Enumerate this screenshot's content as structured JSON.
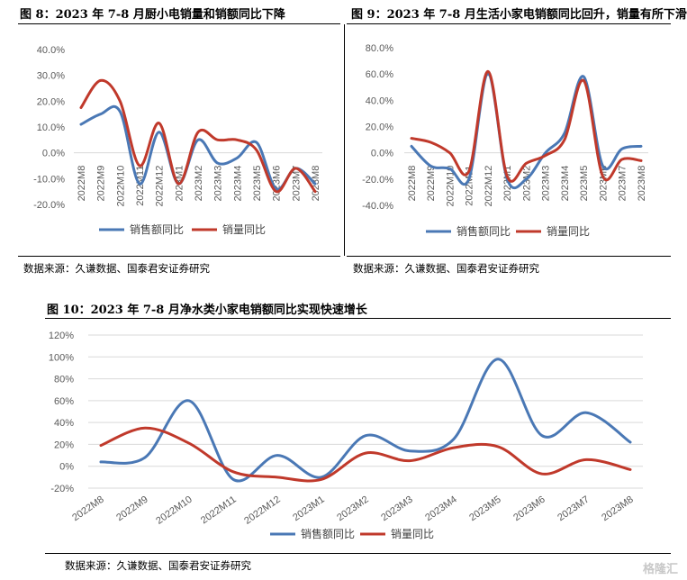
{
  "panels": [
    {
      "title": "图 8：2023 年 7-8 月厨小电销量和销额同比下降",
      "source": "数据来源：久谦数据、国泰君安证券研究"
    },
    {
      "title": "图 9：2023 年 7-8 月生活小家电销额同比回升，销量有所下滑",
      "source": "数据来源：久谦数据、国泰君安证券研究"
    },
    {
      "title": "图 10：2023 年 7-8 月净水类小家电销额同比实现快速增长",
      "source": "数据来源：久谦数据、国泰君安证券研究"
    }
  ],
  "watermark": "格隆汇",
  "colors": {
    "sales_amount": "#4a78b5",
    "sales_volume": "#c0392b",
    "grid": "#d9d9d9"
  },
  "chart_data": [
    {
      "type": "line",
      "title": "",
      "categories": [
        "2022M8",
        "2022M9",
        "2022M10",
        "2022M11",
        "2022M12",
        "2023M1",
        "2023M2",
        "2023M3",
        "2023M4",
        "2023M5",
        "2023M6",
        "2023M7",
        "2023M8"
      ],
      "series": [
        {
          "name": "销售额同比",
          "values": [
            11,
            15,
            16,
            -12,
            8,
            -12,
            5,
            -4,
            -2,
            4,
            -14,
            -6,
            -12
          ]
        },
        {
          "name": "销量同比",
          "values": [
            17.5,
            28,
            20,
            -5,
            11.5,
            -12,
            8,
            5,
            5,
            1,
            -15,
            -6,
            -15
          ]
        }
      ],
      "yticks": [
        "40.0%",
        "30.0%",
        "20.0%",
        "10.0%",
        "0.0%",
        "-10.0%",
        "-20.0%"
      ],
      "ylim": [
        -20,
        40
      ],
      "legend_position": "bottom"
    },
    {
      "type": "line",
      "title": "",
      "categories": [
        "2022M8",
        "2022M9",
        "2022M10",
        "2022M11",
        "2022M12",
        "2023M1",
        "2023M2",
        "2023M3",
        "2023M4",
        "2023M5",
        "2023M6",
        "2023M7",
        "2023M8"
      ],
      "series": [
        {
          "name": "销售额同比",
          "values": [
            5,
            -10,
            -12,
            -20,
            60,
            -20,
            -20,
            0,
            15,
            58,
            -10,
            3,
            5
          ]
        },
        {
          "name": "销量同比",
          "values": [
            11,
            8,
            0,
            -14,
            62,
            -18,
            -8,
            -2,
            10,
            55,
            -18,
            -5,
            -6
          ]
        }
      ],
      "yticks": [
        "80.0%",
        "60.0%",
        "40.0%",
        "20.0%",
        "0.0%",
        "-20.0%",
        "-40.0%"
      ],
      "ylim": [
        -40,
        80
      ],
      "legend_position": "bottom"
    },
    {
      "type": "line",
      "title": "",
      "categories": [
        "2022M8",
        "2022M9",
        "2022M10",
        "2022M11",
        "2022M12",
        "2023M1",
        "2023M2",
        "2023M3",
        "2023M4",
        "2023M5",
        "2023M6",
        "2023M7",
        "2023M8"
      ],
      "series": [
        {
          "name": "销售额同比",
          "values": [
            4,
            8,
            60,
            -12,
            10,
            -10,
            28,
            14,
            25,
            98,
            28,
            49,
            22
          ]
        },
        {
          "name": "销量同比",
          "values": [
            19,
            35,
            21,
            -5,
            -10,
            -12,
            12,
            5,
            17,
            18,
            -7,
            6,
            -3
          ]
        }
      ],
      "yticks": [
        "120%",
        "100%",
        "80%",
        "60%",
        "40%",
        "20%",
        "0%",
        "-20%"
      ],
      "ylim": [
        -20,
        120
      ],
      "legend_position": "bottom"
    }
  ]
}
